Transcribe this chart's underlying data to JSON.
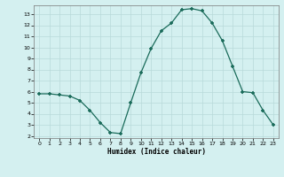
{
  "x": [
    0,
    1,
    2,
    3,
    4,
    5,
    6,
    7,
    8,
    9,
    10,
    11,
    12,
    13,
    14,
    15,
    16,
    17,
    18,
    19,
    20,
    21,
    22,
    23
  ],
  "y": [
    5.8,
    5.8,
    5.7,
    5.6,
    5.2,
    4.3,
    3.2,
    2.3,
    2.2,
    5.0,
    7.7,
    9.9,
    11.5,
    12.2,
    13.4,
    13.5,
    13.3,
    12.2,
    10.6,
    8.3,
    6.0,
    5.9,
    4.3,
    3.0
  ],
  "line_color": "#1a6b5a",
  "marker": "+",
  "marker_size": 4,
  "xlabel": "Humidex (Indice chaleur)",
  "bg_color": "#d4f0f0",
  "grid_color": "#b8dada",
  "xlim": [
    -0.5,
    23.5
  ],
  "ylim": [
    1.8,
    13.8
  ],
  "yticks": [
    2,
    3,
    4,
    5,
    6,
    7,
    8,
    9,
    10,
    11,
    12,
    13
  ],
  "xticks": [
    0,
    1,
    2,
    3,
    4,
    5,
    6,
    7,
    8,
    9,
    10,
    11,
    12,
    13,
    14,
    15,
    16,
    17,
    18,
    19,
    20,
    21,
    22,
    23
  ]
}
